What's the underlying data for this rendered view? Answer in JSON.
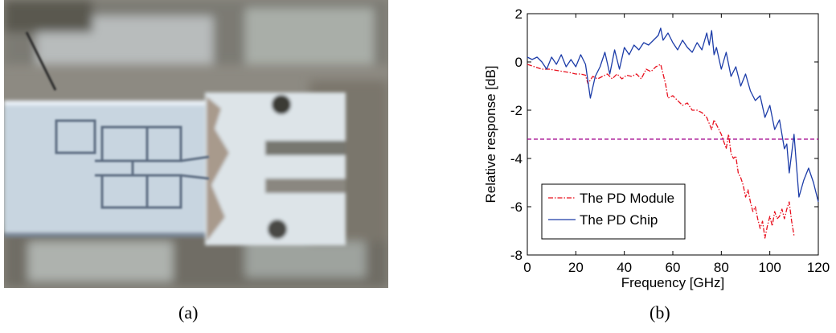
{
  "captions": {
    "a": "(a)",
    "b": "(b)"
  },
  "photo": {
    "subject": "photodiode-chip-on-coplanar-probe"
  },
  "chart_data": {
    "type": "line",
    "title": "",
    "xlabel": "Frequency [GHz]",
    "ylabel": "Relative response [dB]",
    "xlim": [
      0,
      120
    ],
    "ylim": [
      -8,
      2
    ],
    "xticks": [
      0,
      20,
      40,
      60,
      80,
      100,
      120
    ],
    "yticks": [
      -8,
      -6,
      -4,
      -2,
      0,
      2
    ],
    "grid": false,
    "legend_position": "lower-left",
    "reference_line": {
      "y": -3.2,
      "color": "#a0008c"
    },
    "series": [
      {
        "name": "The PD Module",
        "color": "#e8101e",
        "dash": "dashdot",
        "x": [
          0,
          3,
          6,
          9,
          12,
          15,
          18,
          20,
          22,
          24,
          25,
          27,
          29,
          31,
          33,
          35,
          37,
          39,
          41,
          43,
          45,
          47,
          49,
          51,
          53,
          55,
          57,
          58,
          60,
          62,
          64,
          66,
          68,
          70,
          72,
          74,
          76,
          77,
          78,
          80,
          81,
          82,
          83,
          84,
          85,
          86,
          87,
          88,
          89,
          90,
          91,
          92,
          93,
          94,
          95,
          96,
          97,
          98,
          99,
          100,
          101,
          102,
          103,
          104,
          105,
          106,
          107,
          108,
          109,
          110
        ],
        "y": [
          -0.1,
          -0.2,
          -0.3,
          -0.3,
          -0.35,
          -0.4,
          -0.45,
          -0.5,
          -0.5,
          -0.55,
          -0.9,
          -0.6,
          -0.7,
          -0.6,
          -0.5,
          -0.7,
          -0.5,
          -0.7,
          -0.55,
          -0.6,
          -0.5,
          -0.7,
          -0.3,
          -0.4,
          -0.2,
          -0.1,
          -0.9,
          -1.5,
          -1.4,
          -1.6,
          -1.8,
          -1.7,
          -2.0,
          -2.0,
          -2.1,
          -2.3,
          -2.8,
          -2.4,
          -2.6,
          -3.0,
          -3.3,
          -3.6,
          -3.0,
          -3.8,
          -4.0,
          -3.9,
          -4.6,
          -4.8,
          -5.1,
          -5.6,
          -5.3,
          -5.8,
          -6.2,
          -6.0,
          -6.5,
          -6.9,
          -6.6,
          -7.3,
          -6.8,
          -6.4,
          -6.8,
          -6.2,
          -6.5,
          -6.4,
          -6.1,
          -6.5,
          -6.1,
          -5.8,
          -6.6,
          -7.2
        ]
      },
      {
        "name": "The PD Chip",
        "color": "#1c3ca8",
        "dash": "solid",
        "x": [
          0,
          2,
          4,
          6,
          8,
          10,
          12,
          14,
          16,
          18,
          20,
          22,
          24,
          26,
          28,
          30,
          32,
          34,
          36,
          38,
          40,
          42,
          44,
          46,
          48,
          50,
          52,
          54,
          55,
          56,
          58,
          60,
          62,
          64,
          66,
          68,
          70,
          72,
          74,
          75,
          76,
          77,
          78,
          80,
          82,
          84,
          86,
          88,
          90,
          92,
          94,
          96,
          98,
          100,
          102,
          104,
          106,
          107,
          108,
          110,
          112,
          114,
          116,
          118,
          120
        ],
        "y": [
          0.2,
          0.1,
          0.2,
          0.0,
          -0.3,
          0.2,
          -0.1,
          0.3,
          -0.2,
          0.1,
          -0.2,
          0.3,
          -0.1,
          -1.5,
          -0.6,
          -0.2,
          0.4,
          -0.5,
          0.5,
          -0.3,
          0.6,
          0.3,
          0.7,
          0.5,
          0.8,
          0.7,
          0.9,
          1.1,
          1.4,
          0.9,
          1.2,
          0.8,
          0.5,
          0.9,
          0.6,
          0.4,
          0.8,
          0.5,
          1.2,
          0.7,
          1.3,
          0.3,
          0.6,
          -0.3,
          0.4,
          -0.6,
          -0.2,
          -1.0,
          -0.5,
          -1.2,
          -1.6,
          -1.4,
          -2.3,
          -1.8,
          -2.8,
          -2.4,
          -3.6,
          -3.4,
          -4.6,
          -3.0,
          -5.6,
          -4.9,
          -4.4,
          -5.0,
          -5.8
        ]
      }
    ]
  }
}
